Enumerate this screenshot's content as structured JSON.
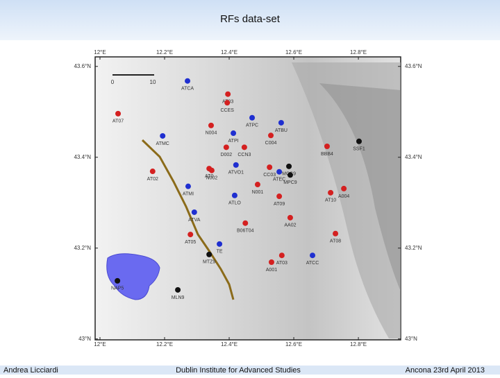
{
  "header": {
    "title": "RFs data-set"
  },
  "footer": {
    "author": "Andrea Licciardi",
    "institute": "Dublin Institute for Advanced Studies",
    "event": "Ancona 23rd April 2013"
  },
  "map": {
    "xlim": [
      11.985,
      12.931
    ],
    "ylim": [
      42.998,
      43.621
    ],
    "xticks": [
      {
        "value": 12,
        "label": "12°E"
      },
      {
        "value": 12.2,
        "label": "12.2°E"
      },
      {
        "value": 12.4,
        "label": "12.4°E"
      },
      {
        "value": 12.6,
        "label": "12.6°E"
      },
      {
        "value": 12.8,
        "label": "12.8°E"
      }
    ],
    "yticks": [
      {
        "value": 43,
        "label": "43°N"
      },
      {
        "value": 43.2,
        "label": "43.2°N"
      },
      {
        "value": 43.4,
        "label": "43.4°N"
      },
      {
        "value": 43.6,
        "label": "43.6°N"
      }
    ],
    "scale_bar": [
      "0",
      "10"
    ],
    "stations": [
      {
        "name": "ATCA",
        "lon": 12.271,
        "lat": 43.568,
        "color": "#1f2fd0"
      },
      {
        "name": "AT03",
        "lon": 12.396,
        "lat": 43.539,
        "color": "#d42020"
      },
      {
        "name": "CCES",
        "lon": 12.394,
        "lat": 43.52,
        "color": "#d42020"
      },
      {
        "name": "AT07",
        "lon": 12.056,
        "lat": 43.496,
        "color": "#d42020"
      },
      {
        "name": "N004",
        "lon": 12.344,
        "lat": 43.47,
        "color": "#d42020"
      },
      {
        "name": "ATPC",
        "lon": 12.471,
        "lat": 43.487,
        "color": "#1f2fd0"
      },
      {
        "name": "ATPI",
        "lon": 12.413,
        "lat": 43.453,
        "color": "#1f2fd0"
      },
      {
        "name": "ATBU",
        "lon": 12.561,
        "lat": 43.476,
        "color": "#1f2fd0"
      },
      {
        "name": "C004",
        "lon": 12.529,
        "lat": 43.448,
        "color": "#d42020"
      },
      {
        "name": "ATMC",
        "lon": 12.194,
        "lat": 43.447,
        "color": "#1f2fd0"
      },
      {
        "name": "D002",
        "lon": 12.391,
        "lat": 43.422,
        "color": "#d42020"
      },
      {
        "name": "CCN3",
        "lon": 12.447,
        "lat": 43.422,
        "color": "#d42020"
      },
      {
        "name": "BBB4",
        "lon": 12.703,
        "lat": 43.424,
        "color": "#d42020"
      },
      {
        "name": "SSF1",
        "lon": 12.802,
        "lat": 43.435,
        "color": "#111111"
      },
      {
        "name": "AT0",
        "lon": 12.338,
        "lat": 43.375,
        "color": "#d42020"
      },
      {
        "name": "N002",
        "lon": 12.346,
        "lat": 43.371,
        "color": "#d42020"
      },
      {
        "name": "AT02",
        "lon": 12.163,
        "lat": 43.369,
        "color": "#d42020"
      },
      {
        "name": "ATVO1",
        "lon": 12.421,
        "lat": 43.383,
        "color": "#1f2fd0"
      },
      {
        "name": "MCC9",
        "lon": 12.585,
        "lat": 43.38,
        "color": "#111111"
      },
      {
        "name": "ATEC",
        "lon": 12.555,
        "lat": 43.368,
        "color": "#1f2fd0"
      },
      {
        "name": "MPC9",
        "lon": 12.589,
        "lat": 43.361,
        "color": "#111111"
      },
      {
        "name": "CC03",
        "lon": 12.525,
        "lat": 43.378,
        "color": "#d42020"
      },
      {
        "name": "A004",
        "lon": 12.755,
        "lat": 43.331,
        "color": "#d42020"
      },
      {
        "name": "AT10",
        "lon": 12.714,
        "lat": 43.322,
        "color": "#d42020"
      },
      {
        "name": "ATMI",
        "lon": 12.273,
        "lat": 43.336,
        "color": "#1f2fd0"
      },
      {
        "name": "ATLO",
        "lon": 12.417,
        "lat": 43.316,
        "color": "#1f2fd0"
      },
      {
        "name": "N001",
        "lon": 12.488,
        "lat": 43.34,
        "color": "#d42020"
      },
      {
        "name": "AT09",
        "lon": 12.555,
        "lat": 43.314,
        "color": "#d42020"
      },
      {
        "name": "ATVA",
        "lon": 12.292,
        "lat": 43.279,
        "color": "#1f2fd0"
      },
      {
        "name": "B06T04",
        "lon": 12.45,
        "lat": 43.255,
        "color": "#d42020"
      },
      {
        "name": "AA02",
        "lon": 12.589,
        "lat": 43.267,
        "color": "#d42020"
      },
      {
        "name": "AT08",
        "lon": 12.729,
        "lat": 43.232,
        "color": "#d42020"
      },
      {
        "name": "AT05",
        "lon": 12.28,
        "lat": 43.23,
        "color": "#d42020"
      },
      {
        "name": "TE",
        "lon": 12.37,
        "lat": 43.209,
        "color": "#1f2fd0"
      },
      {
        "name": "MTZ9",
        "lon": 12.338,
        "lat": 43.186,
        "color": "#111111"
      },
      {
        "name": "AT03",
        "lon": 12.563,
        "lat": 43.184,
        "color": "#d42020"
      },
      {
        "name": "A001",
        "lon": 12.531,
        "lat": 43.169,
        "color": "#d42020"
      },
      {
        "name": "ATCC",
        "lon": 12.658,
        "lat": 43.184,
        "color": "#1f2fd0"
      },
      {
        "name": "NAP5",
        "lon": 12.054,
        "lat": 43.128,
        "color": "#111111"
      },
      {
        "name": "MLN9",
        "lon": 12.241,
        "lat": 43.108,
        "color": "#111111"
      }
    ]
  }
}
